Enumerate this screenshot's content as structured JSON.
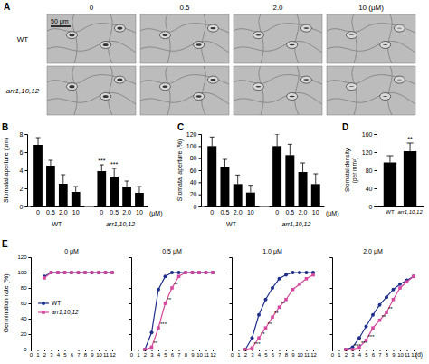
{
  "panel_a": {
    "label": "A",
    "columns": [
      "0",
      "0.5",
      "2.0",
      "10 (μM)"
    ],
    "rows": [
      "WT",
      "arr1,10,12"
    ],
    "scale_bar": "50 μm"
  },
  "chart_data": [
    {
      "panel_label": "B",
      "type": "bar",
      "y_label": "Stomatal aperture (μm)",
      "x_label": "(μM)",
      "categories": [
        "0",
        "0.5",
        "2.0",
        "10"
      ],
      "series": [
        {
          "name": "WT",
          "color": "#000000",
          "values": [
            6.8,
            4.5,
            2.5,
            1.6
          ],
          "errors": [
            0.8,
            0.6,
            1.0,
            0.6
          ]
        },
        {
          "name": "arr1,10,12",
          "color": "#000000",
          "values": [
            3.9,
            3.3,
            2.2,
            1.5
          ],
          "errors": [
            0.7,
            0.9,
            0.6,
            0.7
          ],
          "significance": [
            "***",
            "***",
            null,
            null
          ]
        }
      ],
      "ylim": [
        0,
        8
      ],
      "yticks": [
        0,
        2,
        4,
        6,
        8
      ]
    },
    {
      "panel_label": "C",
      "type": "bar",
      "y_label": "Stomatal aperture (%)",
      "x_label": "(μM)",
      "categories": [
        "0",
        "0.5",
        "2.0",
        "10"
      ],
      "series": [
        {
          "name": "WT",
          "color": "#000000",
          "values": [
            100,
            66,
            37,
            23
          ],
          "errors": [
            15,
            12,
            15,
            12
          ]
        },
        {
          "name": "arr1,10,12",
          "color": "#000000",
          "values": [
            100,
            85,
            57,
            37
          ],
          "errors": [
            20,
            18,
            15,
            17
          ]
        }
      ],
      "ylim": [
        0,
        120
      ],
      "yticks": [
        0,
        20,
        40,
        60,
        80,
        100,
        120
      ]
    },
    {
      "panel_label": "D",
      "type": "bar",
      "y_label": "Stomatal density (per mm²)",
      "categories": [
        "WT",
        "arr1,10,12"
      ],
      "values": [
        97,
        122
      ],
      "errors": [
        15,
        18
      ],
      "significance": [
        null,
        "**"
      ],
      "color": "#000000",
      "ylim": [
        0,
        160
      ],
      "yticks": [
        0,
        40,
        80,
        120,
        160
      ]
    },
    {
      "panel_label": "E",
      "type": "line",
      "title": "0 μM",
      "y_label": "Germination rate (%)",
      "x": [
        2,
        3,
        4,
        5,
        6,
        7,
        8,
        9,
        10,
        11,
        12
      ],
      "series": [
        {
          "name": "WT",
          "color": "#1f2f8a",
          "marker": "circle",
          "values": [
            95,
            100,
            100,
            100,
            100,
            100,
            100,
            100,
            100,
            100,
            100
          ]
        },
        {
          "name": "arr1,10,12",
          "color": "#d54a9e",
          "marker": "square",
          "values": [
            93,
            100,
            100,
            100,
            100,
            100,
            100,
            100,
            100,
            100,
            100
          ]
        }
      ],
      "xlim": [
        0,
        12
      ],
      "xticks": [
        0,
        1,
        2,
        3,
        4,
        5,
        6,
        7,
        8,
        9,
        10,
        11,
        12
      ],
      "ylim": [
        0,
        120
      ],
      "yticks": [
        0,
        20,
        40,
        60,
        80,
        100,
        120
      ],
      "legend": "center"
    },
    {
      "type": "line",
      "title": "0.5 μM",
      "x": [
        2,
        3,
        4,
        5,
        6,
        7,
        8,
        9,
        10,
        11,
        12
      ],
      "series": [
        {
          "color": "#1f2f8a",
          "marker": "circle",
          "values": [
            0,
            22,
            78,
            95,
            100,
            100,
            100,
            100,
            100,
            100,
            100
          ]
        },
        {
          "color": "#d54a9e",
          "marker": "square",
          "values": [
            0,
            3,
            28,
            60,
            80,
            95,
            100,
            100,
            100,
            100,
            100
          ],
          "significance": [
            null,
            "**",
            "***",
            "**",
            "**",
            null,
            null,
            null,
            null,
            null,
            null
          ]
        }
      ],
      "xlim": [
        0,
        12
      ],
      "xticks": [
        0,
        1,
        2,
        3,
        4,
        5,
        6,
        7,
        8,
        9,
        10,
        11,
        12
      ],
      "ylim": [
        0,
        120
      ],
      "yticks": [
        0,
        20,
        40,
        60,
        80,
        100,
        120
      ],
      "tick_labels": "x"
    },
    {
      "type": "line",
      "title": "1.0 μM",
      "x": [
        2,
        3,
        4,
        5,
        6,
        7,
        8,
        9,
        10,
        11,
        12
      ],
      "series": [
        {
          "color": "#1f2f8a",
          "marker": "circle",
          "values": [
            0,
            15,
            45,
            65,
            80,
            92,
            97,
            100,
            100,
            100,
            100
          ]
        },
        {
          "color": "#d54a9e",
          "marker": "square",
          "values": [
            0,
            2,
            15,
            28,
            42,
            55,
            65,
            78,
            85,
            92,
            97
          ],
          "significance": [
            null,
            "***",
            "**",
            "**",
            "**",
            "**",
            null,
            null,
            null,
            null,
            null
          ]
        }
      ],
      "xlim": [
        0,
        12
      ],
      "xticks": [
        0,
        1,
        2,
        3,
        4,
        5,
        6,
        7,
        8,
        9,
        10,
        11,
        12
      ],
      "ylim": [
        0,
        120
      ],
      "yticks": [
        0,
        20,
        40,
        60,
        80,
        100,
        120
      ],
      "tick_labels": "x"
    },
    {
      "type": "line",
      "title": "2.0 μM",
      "x_label": "(d)",
      "x": [
        2,
        3,
        4,
        5,
        6,
        7,
        8,
        9,
        10,
        11,
        12
      ],
      "series": [
        {
          "color": "#1f2f8a",
          "marker": "circle",
          "values": [
            0,
            3,
            15,
            30,
            45,
            58,
            68,
            78,
            85,
            90,
            95
          ]
        },
        {
          "color": "#d54a9e",
          "marker": "square",
          "values": [
            0,
            0,
            3,
            12,
            28,
            38,
            48,
            65,
            80,
            88,
            95
          ],
          "significance": [
            null,
            "***",
            "***",
            "***",
            null,
            "**",
            "**",
            null,
            null,
            null,
            null
          ]
        }
      ],
      "xlim": [
        0,
        12
      ],
      "xticks": [
        0,
        1,
        2,
        3,
        4,
        5,
        6,
        7,
        8,
        9,
        10,
        11,
        12
      ],
      "ylim": [
        0,
        120
      ],
      "yticks": [
        0,
        20,
        40,
        60,
        80,
        100,
        120
      ],
      "tick_labels": "x"
    }
  ]
}
